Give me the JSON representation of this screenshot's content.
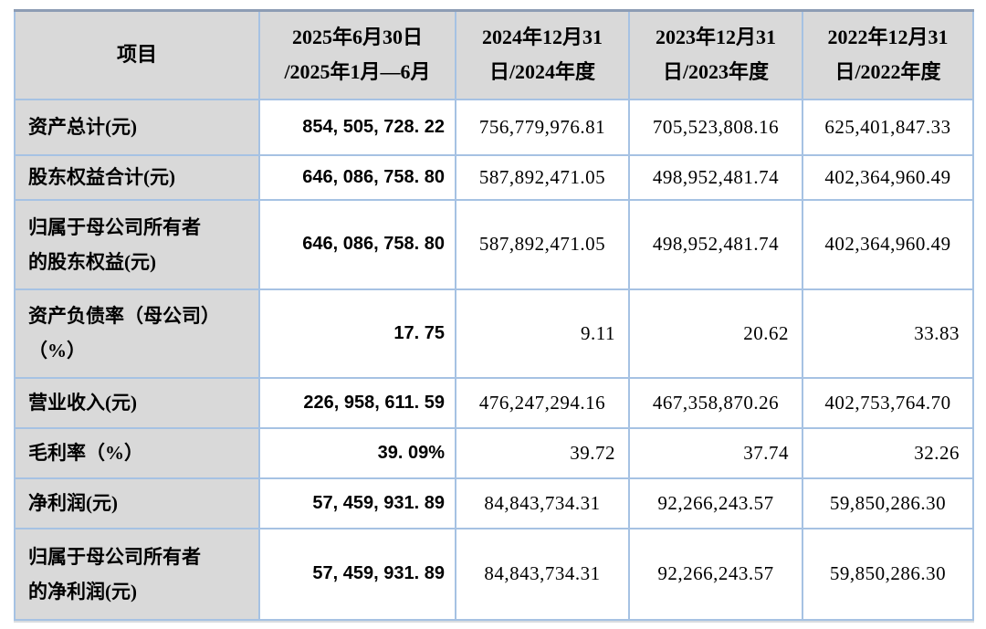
{
  "colors": {
    "header_bg": "#d9d9d9",
    "label_col_bg": "#d9d9d9",
    "grid_line": "#a6c2e3",
    "outer_top_border": "#8d9db4",
    "text": "#000000",
    "cell_bg": "#ffffff"
  },
  "table": {
    "columns": [
      {
        "label": "项目"
      },
      {
        "label": "2025年6月30日\n/2025年1月—6月"
      },
      {
        "label": "2024年12月31\n日/2024年度"
      },
      {
        "label": "2023年12月31\n日/2023年度"
      },
      {
        "label": "2022年12月31\n日/2022年度"
      }
    ],
    "rows": [
      {
        "label": "资产总计(元)",
        "values": [
          "854, 505, 728. 22",
          "756,779,976.81",
          "705,523,808.16",
          "625,401,847.33"
        ]
      },
      {
        "label": "股东权益合计(元)",
        "values": [
          "646, 086, 758. 80",
          "587,892,471.05",
          "498,952,481.74",
          "402,364,960.49"
        ]
      },
      {
        "label": "归属于母公司所有者\n的股东权益(元)",
        "values": [
          "646, 086, 758. 80",
          "587,892,471.05",
          "498,952,481.74",
          "402,364,960.49"
        ]
      },
      {
        "label": "资产负债率（母公司）\n（%）",
        "values": [
          "17. 75",
          "9.11",
          "20.62",
          "33.83"
        ]
      },
      {
        "label": "营业收入(元)",
        "values": [
          "226, 958, 611. 59",
          "476,247,294.16",
          "467,358,870.26",
          "402,753,764.70"
        ]
      },
      {
        "label": "毛利率（%）",
        "values": [
          "39. 09%",
          "39.72",
          "37.74",
          "32.26"
        ]
      },
      {
        "label": "净利润(元)",
        "values": [
          "57, 459, 931. 89",
          "84,843,734.31",
          "92,266,243.57",
          "59,850,286.30"
        ]
      },
      {
        "label": "归属于母公司所有者\n的净利润(元)",
        "values": [
          "57, 459, 931. 89",
          "84,843,734.31",
          "92,266,243.57",
          "59,850,286.30"
        ]
      }
    ]
  }
}
